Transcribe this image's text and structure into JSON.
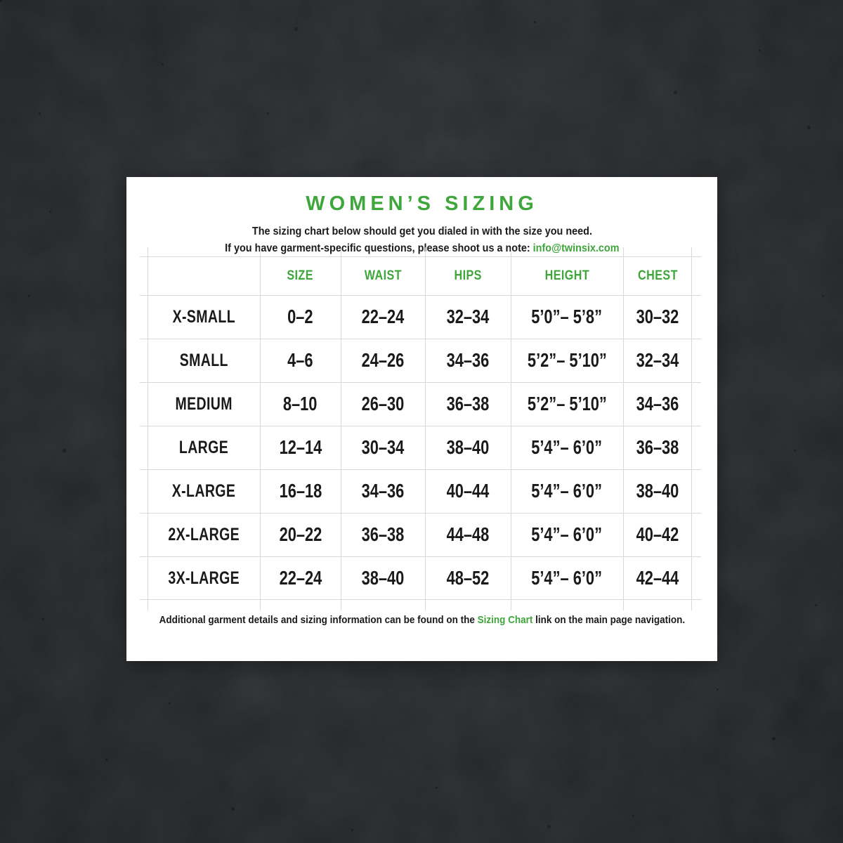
{
  "page": {
    "subtitle_line1": "The sizing chart below should get you dialed in with the size you need.",
    "note_prefix": "If you have garment-specific questions, please shoot us a note: ",
    "email": "info@twinsix.com",
    "footer_prefix": "Additional garment details and sizing information can be found on the ",
    "footer_link": "Sizing Chart",
    "footer_suffix": " link on the main page navigation."
  },
  "colors": {
    "accent_green": "#3ea63b",
    "text": "#1a1a1a",
    "grid_line": "#d8d8d8",
    "card": "#ffffff",
    "background": "#34383c"
  },
  "chart_data": {
    "type": "table",
    "title": "WOMEN’S SIZING",
    "columns": [
      "",
      "SIZE",
      "WAIST",
      "HIPS",
      "HEIGHT",
      "CHEST"
    ],
    "rows": [
      [
        "X-SMALL",
        "0–2",
        "22–24",
        "32–34",
        "5’0”– 5’8”",
        "30–32"
      ],
      [
        "SMALL",
        "4–6",
        "24–26",
        "34–36",
        "5’2”– 5’10”",
        "32–34"
      ],
      [
        "MEDIUM",
        "8–10",
        "26–30",
        "36–38",
        "5’2”– 5’10”",
        "34–36"
      ],
      [
        "LARGE",
        "12–14",
        "30–34",
        "38–40",
        "5’4”– 6’0”",
        "36–38"
      ],
      [
        "X-LARGE",
        "16–18",
        "34–36",
        "40–44",
        "5’4”– 6’0”",
        "38–40"
      ],
      [
        "2X-LARGE",
        "20–22",
        "36–38",
        "44–48",
        "5’4”– 6’0”",
        "40–42"
      ],
      [
        "3X-LARGE",
        "22–24",
        "38–40",
        "48–52",
        "5’4”– 6’0”",
        "42–44"
      ]
    ],
    "layout": {
      "grid": true,
      "header_color": "#3ea63b",
      "value_color": "#1a1a1a"
    }
  }
}
